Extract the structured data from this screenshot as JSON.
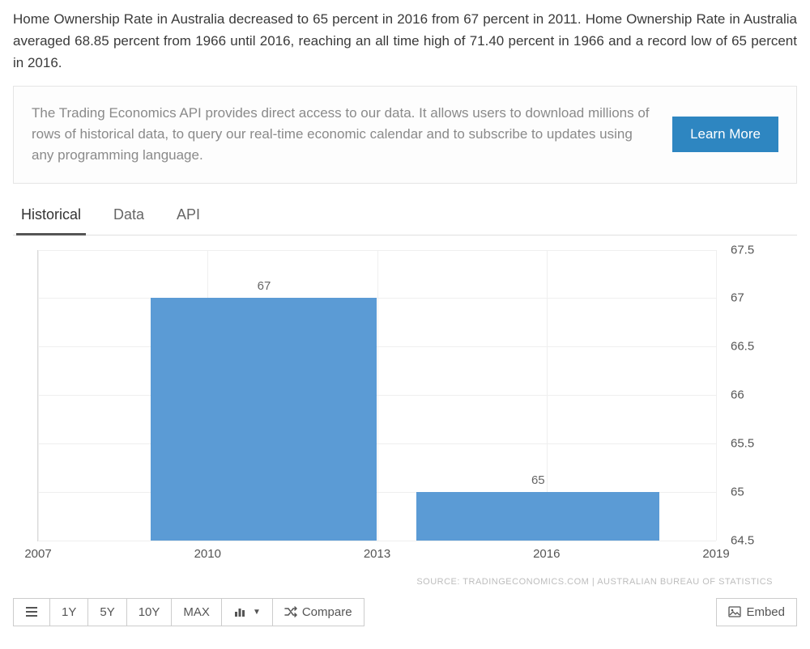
{
  "intro_text": "Home Ownership Rate in Australia decreased to 65 percent in 2016 from 67 percent in 2011. Home Ownership Rate in Australia averaged 68.85 percent from 1966 until 2016, reaching an all time high of 71.40 percent in 1966 and a record low of 65 percent in 2016.",
  "promo": {
    "text": "The Trading Economics API provides direct access to our data. It allows users to download millions of rows of historical data, to query our real-time economic calendar and to subscribe to updates using any programming language.",
    "button": "Learn More"
  },
  "tabs": {
    "items": [
      "Historical",
      "Data",
      "API"
    ],
    "active_index": 0
  },
  "chart": {
    "type": "bar",
    "ymin": 64.5,
    "ymax": 67.5,
    "ytick_step": 0.5,
    "yticks": [
      64.5,
      65,
      65.5,
      66,
      66.5,
      67,
      67.5
    ],
    "xticks": [
      2007,
      2010,
      2013,
      2016,
      2019
    ],
    "xmin": 2007,
    "xmax": 2019,
    "bars": [
      {
        "x_start": 2009.0,
        "x_end": 2013.0,
        "value": 67,
        "label": "67"
      },
      {
        "x_start": 2013.7,
        "x_end": 2018.0,
        "value": 65,
        "label": "65"
      }
    ],
    "bar_color": "#5b9bd5",
    "grid_color": "#efefef",
    "axis_color": "#d9d9d9",
    "background_color": "#ffffff",
    "label_fontsize": 15
  },
  "source_line": "SOURCE: TRADINGECONOMICS.COM  |  AUSTRALIAN BUREAU OF STATISTICS",
  "toolbar": {
    "ranges": [
      "1Y",
      "5Y",
      "10Y",
      "MAX"
    ],
    "compare": "Compare",
    "embed": "Embed"
  }
}
